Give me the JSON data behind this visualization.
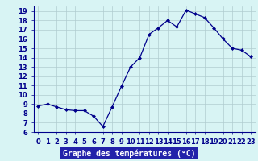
{
  "hours": [
    0,
    1,
    2,
    3,
    4,
    5,
    6,
    7,
    8,
    9,
    10,
    11,
    12,
    13,
    14,
    15,
    16,
    17,
    18,
    19,
    20,
    21,
    22,
    23
  ],
  "temperatures": [
    8.8,
    9.0,
    8.7,
    8.4,
    8.3,
    8.3,
    7.7,
    6.6,
    8.7,
    10.9,
    13.0,
    14.0,
    16.5,
    17.2,
    18.0,
    17.3,
    19.1,
    18.7,
    18.3,
    17.2,
    16.0,
    15.0,
    14.8,
    14.1
  ],
  "xlabel": "Graphe des températures (°C)",
  "ylim": [
    6,
    19.5
  ],
  "xlim": [
    -0.5,
    23.5
  ],
  "yticks": [
    6,
    7,
    8,
    9,
    10,
    11,
    12,
    13,
    14,
    15,
    16,
    17,
    18,
    19
  ],
  "xticks": [
    0,
    1,
    2,
    3,
    4,
    5,
    6,
    7,
    8,
    9,
    10,
    11,
    12,
    13,
    14,
    15,
    16,
    17,
    18,
    19,
    20,
    21,
    22,
    23
  ],
  "line_color": "#00008B",
  "marker_color": "#00008B",
  "bg_color": "#d8f4f4",
  "grid_color": "#b0ccd0",
  "xlabel_bg": "#2222aa",
  "xlabel_fg": "#ffffff",
  "tick_label_color": "#00008B",
  "tick_fontsize": 6,
  "xlabel_fontsize": 7
}
